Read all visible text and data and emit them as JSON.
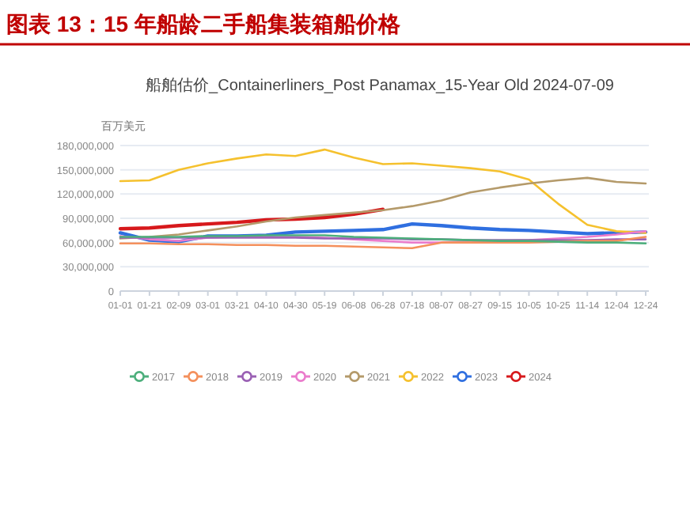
{
  "chart_data": {
    "type": "line",
    "title": "图表 13：15 年船龄二手船集装箱船价格",
    "subtitle": "船舶估价_Containerliners_Post Panamax_15-Year Old 2024-07-09",
    "ylabel": "百万美元",
    "categories": [
      "01-01",
      "01-21",
      "02-09",
      "03-01",
      "03-21",
      "04-10",
      "04-30",
      "05-19",
      "06-08",
      "06-28",
      "07-18",
      "08-07",
      "08-27",
      "09-15",
      "10-05",
      "10-25",
      "11-14",
      "12-04",
      "12-24"
    ],
    "ylim": [
      0,
      180000000
    ],
    "yticks": [
      {
        "value": 0,
        "label": "0"
      },
      {
        "value": 30000000,
        "label": "30,000,000"
      },
      {
        "value": 60000000,
        "label": "60,000,000"
      },
      {
        "value": 90000000,
        "label": "90,000,000"
      },
      {
        "value": 120000000,
        "label": "120,000,000"
      },
      {
        "value": 150000000,
        "label": "150,000,000"
      },
      {
        "value": 180000000,
        "label": "180,000,000"
      }
    ],
    "grid": "y",
    "legend": "bottom",
    "line_style": "solid",
    "series": [
      {
        "name": "2017",
        "color": "#4daf7c",
        "values": [
          67000000,
          67000000,
          67000000,
          68000000,
          68000000,
          69000000,
          69000000,
          69000000,
          67000000,
          66000000,
          65000000,
          64000000,
          63000000,
          62000000,
          62000000,
          61000000,
          60000000,
          60000000,
          59000000
        ]
      },
      {
        "name": "2018",
        "color": "#f4905c",
        "values": [
          59000000,
          59000000,
          58000000,
          58000000,
          57000000,
          57000000,
          56000000,
          56000000,
          55000000,
          54000000,
          53000000,
          60000000,
          60000000,
          60000000,
          60000000,
          61000000,
          62000000,
          62000000,
          67000000
        ]
      },
      {
        "name": "2019",
        "color": "#9a60b4",
        "values": [
          66000000,
          66000000,
          66000000,
          66000000,
          66000000,
          66000000,
          66000000,
          65000000,
          65000000,
          65000000,
          64000000,
          64000000,
          63000000,
          63000000,
          63000000,
          63000000,
          63000000,
          64000000,
          64000000
        ]
      },
      {
        "name": "2020",
        "color": "#ea7ccc",
        "values": [
          68000000,
          64000000,
          62000000,
          66000000,
          67000000,
          67000000,
          67000000,
          66000000,
          64000000,
          62000000,
          60000000,
          60000000,
          60000000,
          62000000,
          63000000,
          65000000,
          67000000,
          70000000,
          74000000
        ]
      },
      {
        "name": "2021",
        "color": "#b49a6a",
        "values": [
          65000000,
          67000000,
          70000000,
          75000000,
          80000000,
          86000000,
          91000000,
          94000000,
          97000000,
          100000000,
          105000000,
          112000000,
          122000000,
          128000000,
          133000000,
          137000000,
          140000000,
          135000000,
          133000000
        ]
      },
      {
        "name": "2022",
        "color": "#f5c12e",
        "values": [
          136000000,
          137000000,
          150000000,
          158000000,
          164000000,
          169000000,
          167000000,
          175000000,
          165000000,
          157000000,
          158000000,
          155000000,
          152000000,
          148000000,
          138000000,
          108000000,
          82000000,
          74000000,
          72000000
        ]
      },
      {
        "name": "2023",
        "color": "#2f6fe0",
        "values": [
          72000000,
          63000000,
          61000000,
          68000000,
          68000000,
          69000000,
          73000000,
          74000000,
          75000000,
          76000000,
          83000000,
          81000000,
          78000000,
          76000000,
          75000000,
          73000000,
          71000000,
          72000000,
          73000000
        ]
      },
      {
        "name": "2024",
        "color": "#d7191c",
        "values": [
          77000000,
          78000000,
          81000000,
          83000000,
          85000000,
          88000000,
          89000000,
          91000000,
          95000000,
          101000000,
          null,
          null,
          null,
          null,
          null,
          null,
          null,
          null,
          null
        ]
      }
    ]
  }
}
